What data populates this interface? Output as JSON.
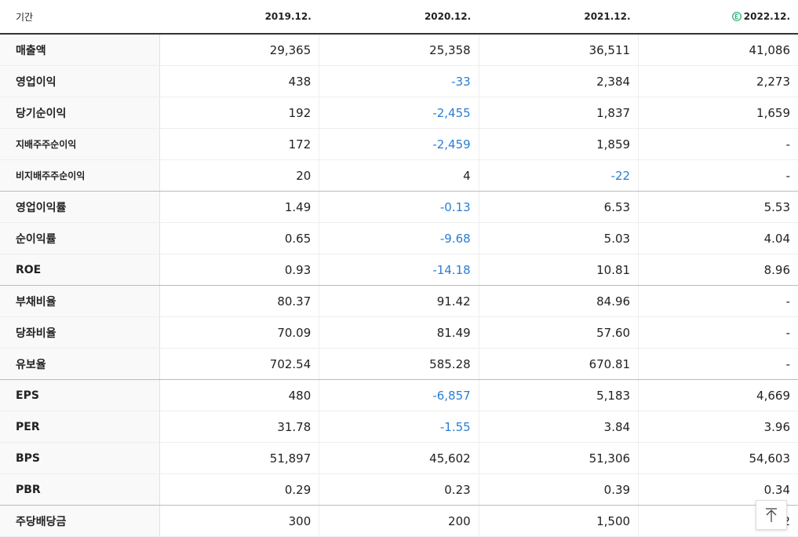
{
  "table": {
    "header": [
      "기간",
      "2019.12.",
      "2020.12.",
      "2021.12.",
      "2022.12."
    ],
    "rows": [
      [
        "매출액",
        "29,365",
        "25,358",
        "36,511",
        "41,086"
      ],
      [
        "영업이익",
        "438",
        "-33",
        "2,384",
        "2,273"
      ],
      [
        "당기순이익",
        "192",
        "-2,455",
        "1,837",
        "1,659"
      ],
      [
        "지배주주순이익",
        "172",
        "-2,459",
        "1,859",
        "-"
      ],
      [
        "비지배주주순이익",
        "20",
        "4",
        "-22",
        "-"
      ],
      [
        "영업이익률",
        "1.49",
        "-0.13",
        "6.53",
        "5.53"
      ],
      [
        "순이익률",
        "0.65",
        "-9.68",
        "5.03",
        "4.04"
      ],
      [
        "ROE",
        "0.93",
        "-14.18",
        "10.81",
        "8.96"
      ],
      [
        "부채비율",
        "80.37",
        "91.42",
        "84.96",
        "-"
      ],
      [
        "당좌비율",
        "70.09",
        "81.49",
        "57.60",
        "-"
      ],
      [
        "유보율",
        "702.54",
        "585.28",
        "670.81",
        "-"
      ],
      [
        "EPS",
        "480",
        "-6,857",
        "5,183",
        "4,669"
      ],
      [
        "PER",
        "31.78",
        "-1.55",
        "3.84",
        "3.96"
      ],
      [
        "BPS",
        "51,897",
        "45,602",
        "51,306",
        "54,603"
      ],
      [
        "PBR",
        "0.29",
        "0.23",
        "0.39",
        "0.34"
      ],
      [
        "주당배당금",
        "300",
        "200",
        "1,500",
        "2"
      ]
    ]
  }
}
